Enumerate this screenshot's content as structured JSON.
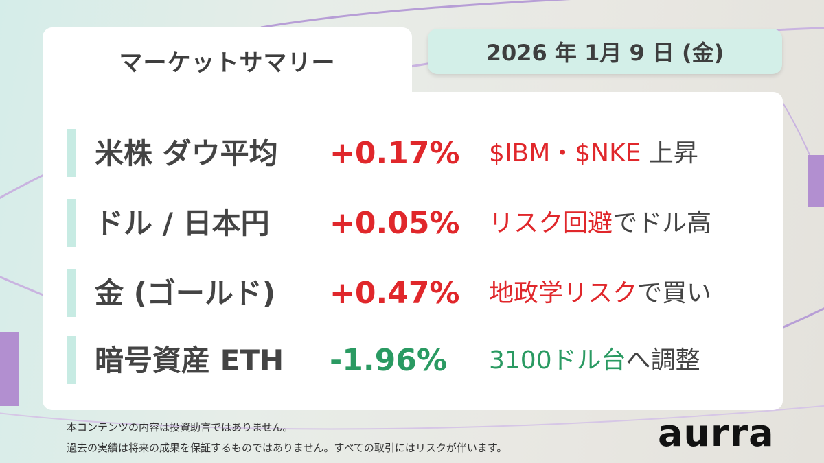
{
  "header": {
    "title": "マーケットサマリー",
    "date": "2026 年 1月 9 日 (金)"
  },
  "colors": {
    "positive": "#e0272b",
    "negative": "#2a9a62",
    "neutral_text": "#444444",
    "row_bar": "#c7ebe3",
    "date_pill": "#d3efe8",
    "accent": "#b28fd0"
  },
  "rows": [
    {
      "name": "米株 ダウ平均",
      "change": "+0.17%",
      "direction": "up",
      "comment": [
        {
          "text": "$IBM・$NKE",
          "tone": "positive"
        },
        {
          "text": " 上昇",
          "tone": "neutral"
        }
      ]
    },
    {
      "name": "ドル / 日本円",
      "change": "+0.05%",
      "direction": "up",
      "comment": [
        {
          "text": "リスク回避",
          "tone": "positive"
        },
        {
          "text": "でドル高",
          "tone": "neutral"
        }
      ]
    },
    {
      "name": "金 (ゴールド)",
      "change": "+0.47%",
      "direction": "up",
      "comment": [
        {
          "text": "地政学リスク",
          "tone": "positive"
        },
        {
          "text": "で買い",
          "tone": "neutral"
        }
      ]
    },
    {
      "name": "暗号資産 ETH",
      "change": "-1.96%",
      "direction": "down",
      "comment": [
        {
          "text": "3100ドル台",
          "tone": "negative"
        },
        {
          "text": "へ調整",
          "tone": "neutral"
        }
      ]
    }
  ],
  "footer": {
    "disclaimer_1": "本コンテンツの内容は投資助言ではありません。",
    "disclaimer_2": "過去の実績は将来の成果を保証するものではありません。すべての取引にはリスクが伴います。",
    "logo": "aurra"
  }
}
